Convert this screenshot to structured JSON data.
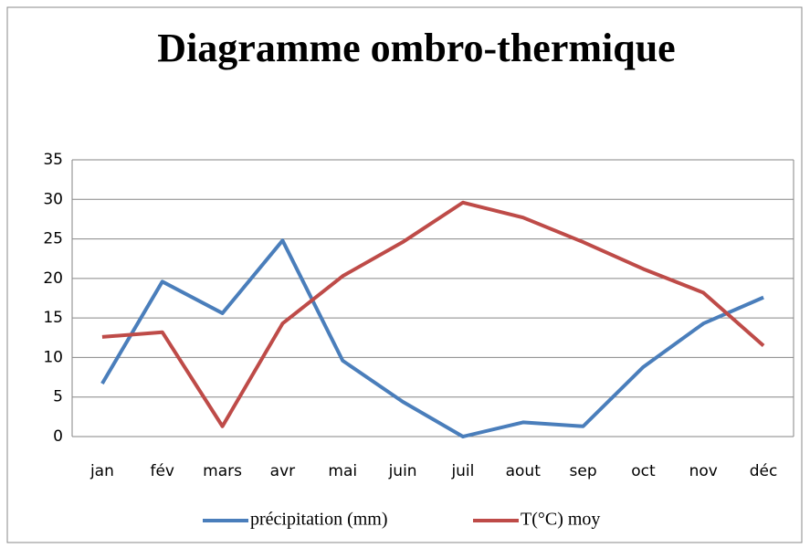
{
  "chart_data": {
    "type": "line",
    "title": "Diagramme ombro-thermique",
    "categories": [
      "jan",
      "fév",
      "mars",
      "avr",
      "mai",
      "juin",
      "juil",
      "aout",
      "sep",
      "oct",
      "nov",
      "déc"
    ],
    "series": [
      {
        "name": "précipitation (mm)",
        "color": "#4a7ebb",
        "values": [
          6.7,
          19.6,
          15.6,
          24.8,
          9.6,
          4.4,
          0,
          1.8,
          1.3,
          8.8,
          14.3,
          17.6
        ]
      },
      {
        "name": "T(°C) moy",
        "color": "#be4b48",
        "values": [
          12.6,
          13.2,
          1.3,
          14.3,
          20.3,
          24.6,
          29.6,
          27.7,
          24.6,
          21.2,
          18.2,
          11.5
        ]
      }
    ],
    "ylim": [
      0,
      35
    ],
    "yticks": [
      0,
      5,
      10,
      15,
      20,
      25,
      30,
      35
    ],
    "grid": true,
    "legend": "bottom"
  }
}
